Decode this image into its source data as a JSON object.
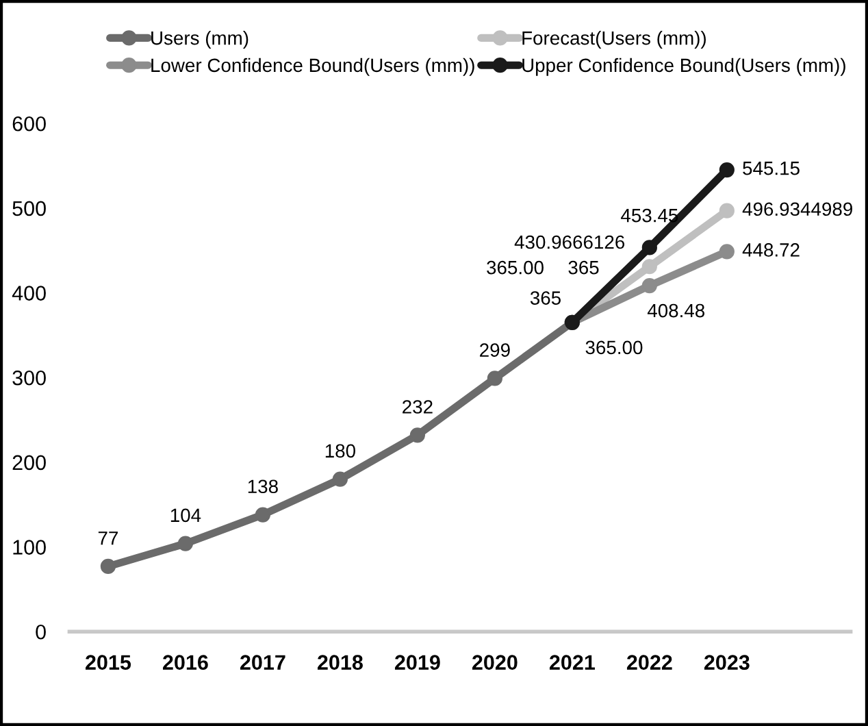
{
  "chart_data": {
    "type": "line",
    "categories": [
      "2015",
      "2016",
      "2017",
      "2018",
      "2019",
      "2020",
      "2021",
      "2022",
      "2023"
    ],
    "series": [
      {
        "name": "Users (mm)",
        "color": "#6b6b6b",
        "values": [
          77,
          104,
          138,
          180,
          232,
          299,
          365,
          null,
          null
        ],
        "value_labels": [
          "77",
          "104",
          "138",
          "180",
          "232",
          "299",
          "365",
          null,
          null
        ]
      },
      {
        "name": "Forecast(Users (mm))",
        "color": "#bfbfbf",
        "values": [
          null,
          null,
          null,
          null,
          null,
          null,
          365,
          430.9666126,
          496.9344989
        ],
        "value_labels": [
          null,
          null,
          null,
          null,
          null,
          null,
          "365",
          "430.9666126",
          "496.9344989"
        ]
      },
      {
        "name": "Lower Confidence Bound(Users (mm))",
        "color": "#8c8c8c",
        "values": [
          null,
          null,
          null,
          null,
          null,
          null,
          365,
          408.48,
          448.72
        ],
        "value_labels": [
          null,
          null,
          null,
          null,
          null,
          null,
          "365.00",
          "408.48",
          "448.72"
        ]
      },
      {
        "name": "Upper Confidence Bound(Users (mm))",
        "color": "#1a1a1a",
        "values": [
          null,
          null,
          null,
          null,
          null,
          null,
          365,
          453.45,
          545.15
        ],
        "value_labels": [
          null,
          null,
          null,
          null,
          null,
          null,
          "365.00",
          "453.45",
          "545.15"
        ]
      }
    ],
    "ylim": [
      0,
      600
    ],
    "yticks": [
      0,
      100,
      200,
      300,
      400,
      500,
      600
    ],
    "grid": false,
    "legend": "top",
    "marker": "circle",
    "line_style": "solid"
  }
}
